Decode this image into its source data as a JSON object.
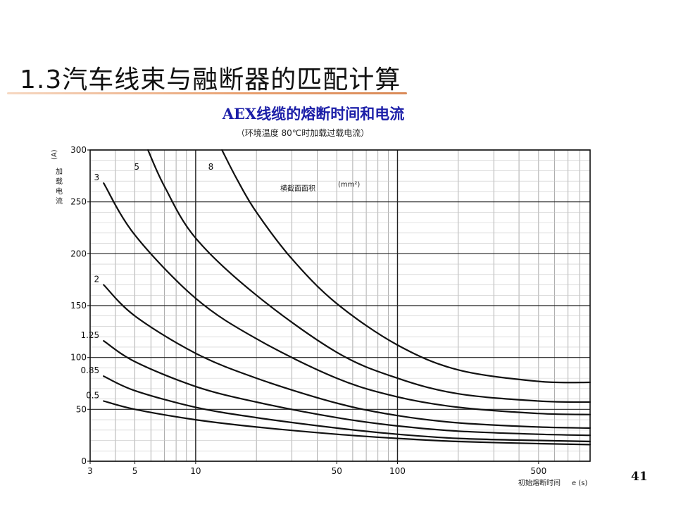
{
  "slide": {
    "title": "1.3汽车线束与融断器的匹配计算",
    "page_number": "41"
  },
  "chart_data": {
    "type": "line",
    "title": "AEX线缆的熔断时间和电流",
    "subtitle": "（环境温度 80℃时加载过载电流）",
    "ylabel": "加载电流",
    "ylabel_unit": "(A)",
    "xlabel": "初始熔断时间",
    "xlabel_unit": "e (s)",
    "legend_title": "横截面面积",
    "legend_unit": "(mm²)",
    "x_scale": "log",
    "xlim": [
      3,
      900
    ],
    "ylim": [
      0,
      300
    ],
    "x_ticks": [
      3,
      5,
      10,
      50,
      100,
      500
    ],
    "y_ticks": [
      0,
      50,
      100,
      150,
      200,
      250,
      300
    ],
    "grid": true,
    "series": [
      {
        "name": "0.5",
        "x": [
          3.5,
          5,
          10,
          20,
          50,
          100,
          200,
          500,
          900
        ],
        "y": [
          58,
          50,
          40,
          33,
          26,
          22,
          19,
          17,
          16
        ]
      },
      {
        "name": "0.85",
        "x": [
          3.5,
          5,
          10,
          20,
          50,
          100,
          200,
          500,
          900
        ],
        "y": [
          82,
          68,
          52,
          42,
          32,
          26,
          22,
          20,
          19
        ]
      },
      {
        "name": "1.25",
        "x": [
          3.5,
          5,
          10,
          20,
          50,
          100,
          200,
          500,
          900
        ],
        "y": [
          116,
          96,
          72,
          57,
          42,
          34,
          29,
          26,
          25
        ]
      },
      {
        "name": "2",
        "x": [
          3.5,
          5,
          10,
          20,
          50,
          100,
          200,
          500,
          900
        ],
        "y": [
          170,
          140,
          104,
          80,
          56,
          44,
          37,
          33,
          32
        ]
      },
      {
        "name": "3",
        "x": [
          3.5,
          5,
          10,
          20,
          50,
          100,
          200,
          500,
          900
        ],
        "y": [
          268,
          218,
          157,
          118,
          80,
          62,
          52,
          46,
          45
        ]
      },
      {
        "name": "5",
        "x": [
          5.8,
          7,
          10,
          20,
          50,
          100,
          200,
          500,
          900
        ],
        "y": [
          300,
          265,
          215,
          160,
          105,
          80,
          65,
          58,
          57
        ]
      },
      {
        "name": "8",
        "x": [
          13.5,
          16,
          20,
          30,
          50,
          100,
          200,
          500,
          900
        ],
        "y": [
          300,
          272,
          240,
          195,
          152,
          112,
          88,
          77,
          76
        ]
      }
    ]
  }
}
